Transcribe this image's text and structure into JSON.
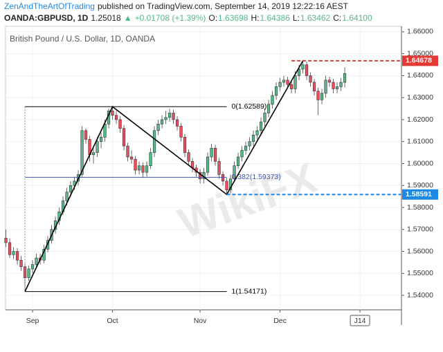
{
  "chart_data": {
    "type": "candlestick",
    "header": {
      "author": "ZenAndTheArtOfTrading",
      "published": "published on TradingView.com, September 14, 2019 12:22:16 AEST",
      "symbol": "OANDA:GBPUSD, 1D",
      "last": "1.25018",
      "arrow": "▲",
      "change": "+0.01708 (+1.39%)",
      "o_label": "O:",
      "o": "1.63698",
      "h_label": "H:",
      "h": "1.64386",
      "l_label": "L:",
      "l": "1.63462",
      "c_label": "C:",
      "c": "1.64100"
    },
    "title": "British Pound / U.S. Dollar, 1D, OANDA",
    "watermark": "WikiFX",
    "up_color": "#53b987",
    "down_color": "#eb4d5c",
    "candles": [
      [
        1.566,
        1.57,
        1.562,
        1.564
      ],
      [
        1.564,
        1.566,
        1.557,
        1.5585
      ],
      [
        1.5585,
        1.562,
        1.5565,
        1.56
      ],
      [
        1.56,
        1.5615,
        1.554,
        1.556
      ],
      [
        1.556,
        1.558,
        1.551,
        1.553
      ],
      [
        1.553,
        1.5545,
        1.54171,
        1.548
      ],
      [
        1.548,
        1.5535,
        1.5465,
        1.552
      ],
      [
        1.552,
        1.556,
        1.55,
        1.554
      ],
      [
        1.554,
        1.559,
        1.5525,
        1.557
      ],
      [
        1.557,
        1.559,
        1.554,
        1.556
      ],
      [
        1.556,
        1.563,
        1.5545,
        1.561
      ],
      [
        1.561,
        1.567,
        1.5595,
        1.565
      ],
      [
        1.565,
        1.572,
        1.5635,
        1.57
      ],
      [
        1.57,
        1.576,
        1.568,
        1.574
      ],
      [
        1.574,
        1.58,
        1.572,
        1.578
      ],
      [
        1.578,
        1.585,
        1.5765,
        1.583
      ],
      [
        1.583,
        1.589,
        1.581,
        1.587
      ],
      [
        1.587,
        1.592,
        1.585,
        1.59
      ],
      [
        1.59,
        1.594,
        1.588,
        1.592
      ],
      [
        1.592,
        1.597,
        1.59,
        1.595
      ],
      [
        1.595,
        1.617,
        1.594,
        1.615
      ],
      [
        1.615,
        1.616,
        1.609,
        1.611
      ],
      [
        1.611,
        1.6125,
        1.601,
        1.604
      ],
      [
        1.604,
        1.607,
        1.6,
        1.605
      ],
      [
        1.605,
        1.612,
        1.603,
        1.61
      ],
      [
        1.61,
        1.614,
        1.607,
        1.612
      ],
      [
        1.612,
        1.62,
        1.61,
        1.618
      ],
      [
        1.618,
        1.625,
        1.616,
        1.624
      ],
      [
        1.624,
        1.62589,
        1.62,
        1.622
      ],
      [
        1.622,
        1.624,
        1.618,
        1.62
      ],
      [
        1.62,
        1.6215,
        1.614,
        1.616
      ],
      [
        1.616,
        1.6175,
        1.606,
        1.608
      ],
      [
        1.608,
        1.6095,
        1.601,
        1.603
      ],
      [
        1.603,
        1.606,
        1.6,
        1.602
      ],
      [
        1.602,
        1.6035,
        1.595,
        1.597
      ],
      [
        1.597,
        1.601,
        1.595,
        1.599
      ],
      [
        1.599,
        1.6005,
        1.5935,
        1.596
      ],
      [
        1.596,
        1.601,
        1.594,
        1.599
      ],
      [
        1.599,
        1.607,
        1.5975,
        1.605
      ],
      [
        1.605,
        1.617,
        1.603,
        1.615
      ],
      [
        1.615,
        1.62,
        1.613,
        1.618
      ],
      [
        1.618,
        1.622,
        1.616,
        1.62
      ],
      [
        1.62,
        1.624,
        1.618,
        1.621
      ],
      [
        1.621,
        1.625,
        1.619,
        1.623
      ],
      [
        1.623,
        1.6245,
        1.618,
        1.62
      ],
      [
        1.62,
        1.6215,
        1.615,
        1.617
      ],
      [
        1.617,
        1.6185,
        1.61,
        1.612
      ],
      [
        1.612,
        1.6135,
        1.603,
        1.605
      ],
      [
        1.605,
        1.6065,
        1.599,
        1.601
      ],
      [
        1.601,
        1.6025,
        1.596,
        1.598
      ],
      [
        1.598,
        1.5995,
        1.594,
        1.596
      ],
      [
        1.596,
        1.5975,
        1.591,
        1.593
      ],
      [
        1.593,
        1.598,
        1.591,
        1.596
      ],
      [
        1.596,
        1.605,
        1.5945,
        1.603
      ],
      [
        1.603,
        1.609,
        1.601,
        1.607
      ],
      [
        1.607,
        1.6085,
        1.599,
        1.601
      ],
      [
        1.601,
        1.6025,
        1.593,
        1.595
      ],
      [
        1.595,
        1.5965,
        1.59,
        1.592
      ],
      [
        1.592,
        1.5935,
        1.58591,
        1.588
      ],
      [
        1.588,
        1.595,
        1.5865,
        1.593
      ],
      [
        1.593,
        1.601,
        1.5915,
        1.599
      ],
      [
        1.599,
        1.605,
        1.5975,
        1.603
      ],
      [
        1.603,
        1.608,
        1.601,
        1.606
      ],
      [
        1.606,
        1.61,
        1.604,
        1.608
      ],
      [
        1.608,
        1.612,
        1.606,
        1.61
      ],
      [
        1.61,
        1.615,
        1.608,
        1.613
      ],
      [
        1.613,
        1.617,
        1.611,
        1.615
      ],
      [
        1.615,
        1.621,
        1.613,
        1.619
      ],
      [
        1.619,
        1.625,
        1.617,
        1.623
      ],
      [
        1.623,
        1.629,
        1.621,
        1.627
      ],
      [
        1.627,
        1.633,
        1.625,
        1.631
      ],
      [
        1.631,
        1.637,
        1.629,
        1.635
      ],
      [
        1.635,
        1.639,
        1.633,
        1.637
      ],
      [
        1.637,
        1.64,
        1.635,
        1.638
      ],
      [
        1.638,
        1.6395,
        1.634,
        1.636
      ],
      [
        1.636,
        1.6375,
        1.632,
        1.634
      ],
      [
        1.634,
        1.642,
        1.632,
        1.64
      ],
      [
        1.64,
        1.645,
        1.638,
        1.643
      ],
      [
        1.643,
        1.64678,
        1.641,
        1.645
      ],
      [
        1.645,
        1.6465,
        1.638,
        1.64
      ],
      [
        1.64,
        1.6415,
        1.635,
        1.637
      ],
      [
        1.637,
        1.6385,
        1.631,
        1.633
      ],
      [
        1.633,
        1.6345,
        1.622,
        1.629
      ],
      [
        1.629,
        1.634,
        1.627,
        1.632
      ],
      [
        1.632,
        1.64,
        1.63,
        1.638
      ],
      [
        1.638,
        1.6395,
        1.635,
        1.637
      ],
      [
        1.637,
        1.6385,
        1.632,
        1.634
      ],
      [
        1.634,
        1.637,
        1.632,
        1.635
      ],
      [
        1.635,
        1.639,
        1.633,
        1.637
      ],
      [
        1.63698,
        1.64386,
        1.63462,
        1.641
      ]
    ],
    "xlim": [
      -0.1,
      103.9
    ],
    "xticks": [
      {
        "value": 7,
        "label": "Sep"
      },
      {
        "value": 28,
        "label": "Oct"
      },
      {
        "value": 51,
        "label": "Nov"
      },
      {
        "value": 72,
        "label": "Dec"
      },
      {
        "value": 93,
        "label": "J14"
      }
    ],
    "ylim": [
      1.5334,
      1.6625
    ],
    "yticks": [
      {
        "value": 1.54,
        "label": "1.54000"
      },
      {
        "value": 1.55,
        "label": "1.55000"
      },
      {
        "value": 1.56,
        "label": "1.56000"
      },
      {
        "value": 1.57,
        "label": "1.57000"
      },
      {
        "value": 1.58,
        "label": "1.58000"
      },
      {
        "value": 1.59,
        "label": "1.59000"
      },
      {
        "value": 1.6,
        "label": "1.60000"
      },
      {
        "value": 1.61,
        "label": "1.61000"
      },
      {
        "value": 1.62,
        "label": "1.62000"
      },
      {
        "value": 1.63,
        "label": "1.63000"
      },
      {
        "value": 1.64,
        "label": "1.64000"
      },
      {
        "value": 1.65,
        "label": "1.65000"
      },
      {
        "value": 1.66,
        "label": "1.66000"
      }
    ],
    "grid": true,
    "fib": {
      "from": 5,
      "to": 58,
      "levels": [
        {
          "price": 1.62589,
          "label": "0(1.62589)",
          "color": "#000000"
        },
        {
          "price": 1.59373,
          "label": "0.382(1.59373)",
          "color": "#3f51b5"
        },
        {
          "price": 1.54171,
          "label": "1(1.54171)",
          "color": "#000000"
        }
      ]
    },
    "zigzag": {
      "x": [
        5,
        28,
        58,
        78
      ],
      "y": [
        1.54171,
        1.62589,
        1.58591,
        1.64678
      ]
    },
    "price_lines": [
      {
        "from": 75,
        "price": 1.64678,
        "label": "1.64678",
        "color": "#e53935"
      },
      {
        "from": 58,
        "price": 1.58591,
        "label": "1.58591",
        "color": "#1e88e5"
      }
    ]
  }
}
